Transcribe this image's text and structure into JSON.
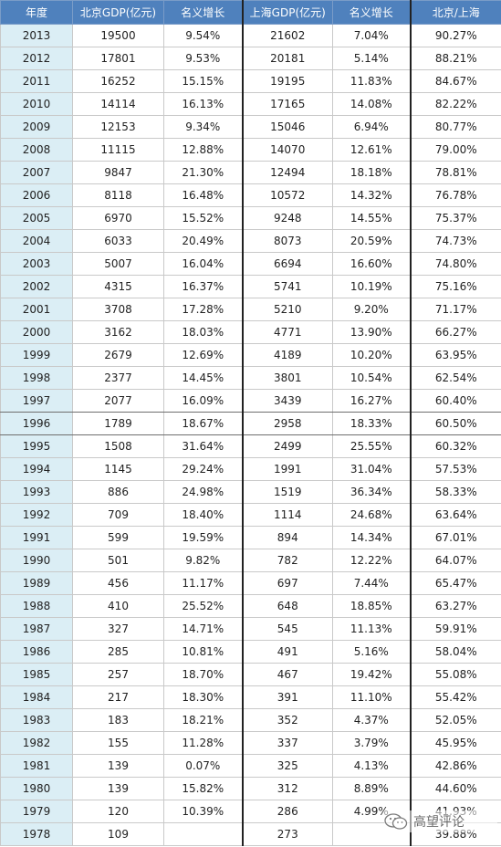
{
  "table": {
    "headers": [
      "年度",
      "北京GDP(亿元)",
      "名义增长",
      "上海GDP(亿元)",
      "名义增长",
      "北京/上海"
    ],
    "rows": [
      [
        "2013",
        "19500",
        "9.54%",
        "21602",
        "7.04%",
        "90.27%"
      ],
      [
        "2012",
        "17801",
        "9.53%",
        "20181",
        "5.14%",
        "88.21%"
      ],
      [
        "2011",
        "16252",
        "15.15%",
        "19195",
        "11.83%",
        "84.67%"
      ],
      [
        "2010",
        "14114",
        "16.13%",
        "17165",
        "14.08%",
        "82.22%"
      ],
      [
        "2009",
        "12153",
        "9.34%",
        "15046",
        "6.94%",
        "80.77%"
      ],
      [
        "2008",
        "11115",
        "12.88%",
        "14070",
        "12.61%",
        "79.00%"
      ],
      [
        "2007",
        "9847",
        "21.30%",
        "12494",
        "18.18%",
        "78.81%"
      ],
      [
        "2006",
        "8118",
        "16.48%",
        "10572",
        "14.32%",
        "76.78%"
      ],
      [
        "2005",
        "6970",
        "15.52%",
        "9248",
        "14.55%",
        "75.37%"
      ],
      [
        "2004",
        "6033",
        "20.49%",
        "8073",
        "20.59%",
        "74.73%"
      ],
      [
        "2003",
        "5007",
        "16.04%",
        "6694",
        "16.60%",
        "74.80%"
      ],
      [
        "2002",
        "4315",
        "16.37%",
        "5741",
        "10.19%",
        "75.16%"
      ],
      [
        "2001",
        "3708",
        "17.28%",
        "5210",
        "9.20%",
        "71.17%"
      ],
      [
        "2000",
        "3162",
        "18.03%",
        "4771",
        "13.90%",
        "66.27%"
      ],
      [
        "1999",
        "2679",
        "12.69%",
        "4189",
        "10.20%",
        "63.95%"
      ],
      [
        "1998",
        "2377",
        "14.45%",
        "3801",
        "10.54%",
        "62.54%"
      ],
      [
        "1997",
        "2077",
        "16.09%",
        "3439",
        "16.27%",
        "60.40%"
      ],
      [
        "1996",
        "1789",
        "18.67%",
        "2958",
        "18.33%",
        "60.50%"
      ],
      [
        "1995",
        "1508",
        "31.64%",
        "2499",
        "25.55%",
        "60.32%"
      ],
      [
        "1994",
        "1145",
        "29.24%",
        "1991",
        "31.04%",
        "57.53%"
      ],
      [
        "1993",
        "886",
        "24.98%",
        "1519",
        "36.34%",
        "58.33%"
      ],
      [
        "1992",
        "709",
        "18.40%",
        "1114",
        "24.68%",
        "63.64%"
      ],
      [
        "1991",
        "599",
        "19.59%",
        "894",
        "14.34%",
        "67.01%"
      ],
      [
        "1990",
        "501",
        "9.82%",
        "782",
        "12.22%",
        "64.07%"
      ],
      [
        "1989",
        "456",
        "11.17%",
        "697",
        "7.44%",
        "65.47%"
      ],
      [
        "1988",
        "410",
        "25.52%",
        "648",
        "18.85%",
        "63.27%"
      ],
      [
        "1987",
        "327",
        "14.71%",
        "545",
        "11.13%",
        "59.91%"
      ],
      [
        "1986",
        "285",
        "10.81%",
        "491",
        "5.16%",
        "58.04%"
      ],
      [
        "1985",
        "257",
        "18.70%",
        "467",
        "19.42%",
        "55.08%"
      ],
      [
        "1984",
        "217",
        "18.30%",
        "391",
        "11.10%",
        "55.42%"
      ],
      [
        "1983",
        "183",
        "18.21%",
        "352",
        "4.37%",
        "52.05%"
      ],
      [
        "1982",
        "155",
        "11.28%",
        "337",
        "3.79%",
        "45.95%"
      ],
      [
        "1981",
        "139",
        "0.07%",
        "325",
        "4.13%",
        "42.86%"
      ],
      [
        "1980",
        "139",
        "15.82%",
        "312",
        "8.89%",
        "44.60%"
      ],
      [
        "1979",
        "120",
        "10.39%",
        "286",
        "4.99%",
        "41.93%"
      ],
      [
        "1978",
        "109",
        "",
        "273",
        "",
        "39.88%"
      ]
    ]
  },
  "watermark": {
    "text": "高望评论",
    "icon": "wechat-icon"
  },
  "colors": {
    "header_bg": "#4f81bd",
    "year_column_bg": "#dbeef5"
  }
}
